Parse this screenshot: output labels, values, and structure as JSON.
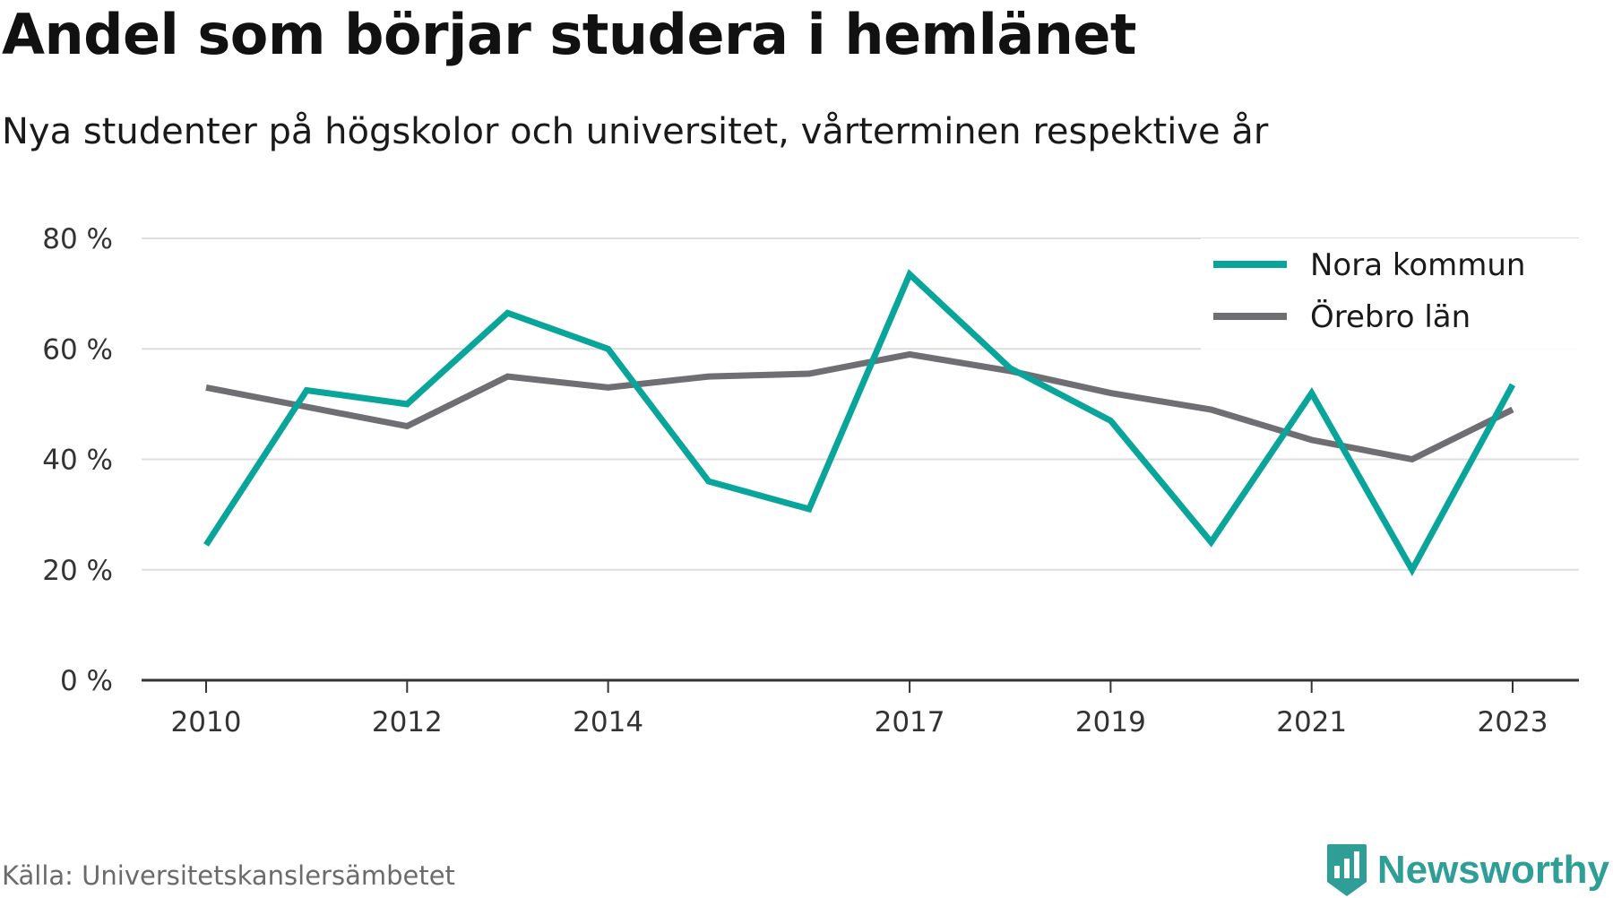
{
  "header": {
    "title": "Andel som börjar studera i hemlänet",
    "subtitle": "Nya studenter på högskolor och universitet, vårterminen respektive år"
  },
  "footer": {
    "source": "Källa: Universitetskanslersämbetet",
    "brand": "Newsworthy",
    "brand_icon": "bar-chart-badge-icon"
  },
  "colors": {
    "nora": "#0aa59a",
    "orebro": "#6e6e73",
    "grid": "#dddddd",
    "axis": "#333333",
    "brand": "#2e9e96"
  },
  "chart_data": {
    "type": "line",
    "x": [
      2010,
      2011,
      2012,
      2013,
      2014,
      2015,
      2016,
      2017,
      2018,
      2019,
      2020,
      2021,
      2022,
      2023
    ],
    "x_tick_labels": [
      "2010",
      "2012",
      "2014",
      "2017",
      "2019",
      "2021",
      "2023"
    ],
    "y_tick_labels": [
      "0 %",
      "20 %",
      "40 %",
      "60 %",
      "80 %"
    ],
    "y_ticks": [
      0,
      20,
      40,
      60,
      80
    ],
    "ylim": [
      0,
      80
    ],
    "grid": true,
    "legend_position": "top-right",
    "series": [
      {
        "name": "Nora kommun",
        "values": [
          24.5,
          52.5,
          50,
          66.5,
          60,
          36,
          31,
          73.5,
          56.5,
          47,
          25,
          52,
          20,
          53.5
        ]
      },
      {
        "name": "Örebro län",
        "values": [
          53,
          49.5,
          46,
          55,
          53,
          55,
          55.5,
          59,
          56,
          52,
          49,
          43.5,
          40,
          49
        ]
      }
    ]
  }
}
